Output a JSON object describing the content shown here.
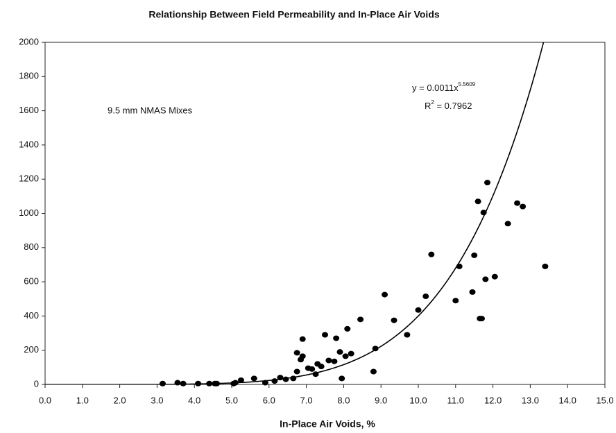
{
  "chart_data": {
    "type": "scatter",
    "title": "Relationship Between Field Permeability and In-Place Air Voids",
    "x_label": "In-Place Air Voids, %",
    "annotation": "9.5 mm NMAS Mixes",
    "equation": {
      "text": "y = 0.0011x",
      "exponent": "5.5609"
    },
    "r_squared": {
      "text": "R",
      "sup": "2",
      "rest": " = 0.7962"
    },
    "trendline": {
      "coefficient": 0.0011,
      "exponent": 5.5609
    },
    "color": "#000000",
    "xlim": [
      0,
      15
    ],
    "ylim": [
      0,
      2000
    ],
    "xticks": [
      {
        "value": 0,
        "label": "0.0"
      },
      {
        "value": 1,
        "label": "1.0"
      },
      {
        "value": 2,
        "label": "2.0"
      },
      {
        "value": 3,
        "label": "3.0"
      },
      {
        "value": 4,
        "label": "4.0"
      },
      {
        "value": 5,
        "label": "5.0"
      },
      {
        "value": 6,
        "label": "6.0"
      },
      {
        "value": 7,
        "label": "7.0"
      },
      {
        "value": 8,
        "label": "8.0"
      },
      {
        "value": 9,
        "label": "9.0"
      },
      {
        "value": 10,
        "label": "10.0"
      },
      {
        "value": 11,
        "label": "11.0"
      },
      {
        "value": 12,
        "label": "12.0"
      },
      {
        "value": 13,
        "label": "13.0"
      },
      {
        "value": 14,
        "label": "14.0"
      },
      {
        "value": 15,
        "label": "15.0"
      }
    ],
    "yticks": [
      0,
      200,
      400,
      600,
      800,
      1000,
      1200,
      1400,
      1600,
      1800,
      2000
    ],
    "x": [
      3.15,
      3.55,
      3.7,
      4.1,
      4.4,
      4.55,
      4.6,
      5.05,
      5.1,
      5.25,
      5.6,
      5.9,
      6.15,
      6.3,
      6.45,
      6.65,
      6.75,
      6.75,
      6.85,
      6.9,
      6.9,
      7.05,
      7.15,
      7.25,
      7.3,
      7.4,
      7.5,
      7.6,
      7.75,
      7.8,
      7.9,
      7.95,
      8.05,
      8.1,
      8.2,
      8.45,
      8.8,
      8.85,
      9.1,
      9.35,
      9.7,
      10.0,
      10.2,
      10.35,
      11.0,
      11.1,
      11.45,
      11.5,
      11.6,
      11.65,
      11.7,
      11.75,
      11.8,
      11.85,
      12.05,
      12.4,
      12.65,
      12.8,
      13.4
    ],
    "values": [
      5,
      10,
      5,
      5,
      5,
      5,
      5,
      5,
      10,
      25,
      35,
      10,
      20,
      40,
      30,
      35,
      75,
      185,
      145,
      165,
      265,
      95,
      90,
      60,
      120,
      105,
      290,
      140,
      135,
      270,
      190,
      35,
      165,
      325,
      180,
      380,
      75,
      210,
      525,
      375,
      290,
      435,
      515,
      760,
      490,
      690,
      540,
      755,
      1070,
      385,
      385,
      1005,
      615,
      1180,
      630,
      940,
      1060,
      1040,
      690
    ]
  }
}
